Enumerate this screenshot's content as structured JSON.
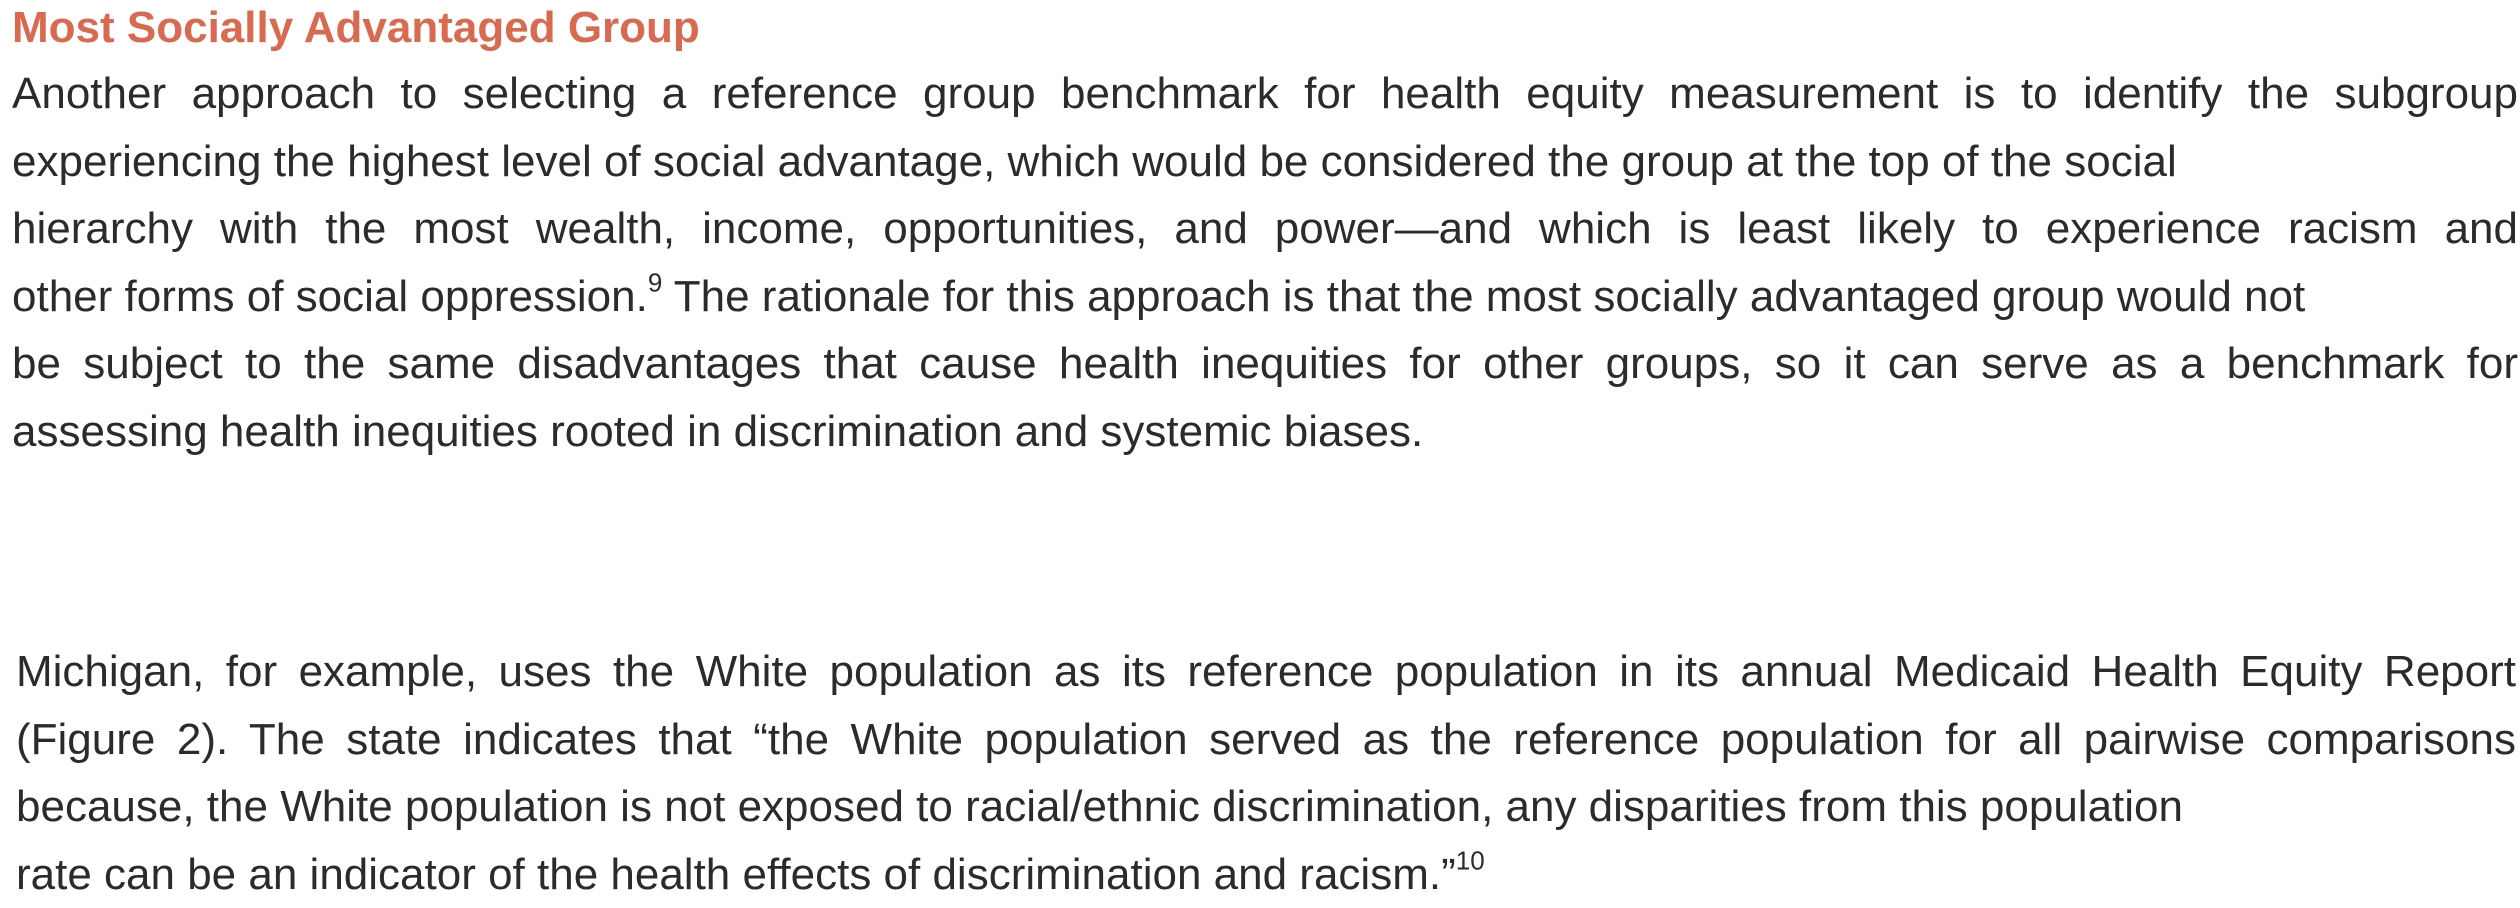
{
  "section": {
    "heading": "Most Socially Advantaged Group"
  },
  "paragraph1": {
    "lines": [
      "Another approach to selecting a reference group benchmark for health equity measurement is to identify the subgroup",
      "experiencing the highest level of social advantage, which would be considered the group at the top of the social",
      "hierarchy with the most wealth, income, opportunities, and power—and which is least likely to experience racism and",
      "other forms of social oppression.",
      " The rationale for this approach is that the most socially advantaged group would not",
      "be subject to the same disadvantages that cause health inequities for other groups, so it can serve as a benchmark for",
      "assessing health inequities rooted in discrimination and systemic biases."
    ],
    "footnote_ref": "9"
  },
  "paragraph2": {
    "lines": [
      "Michigan, for example, uses the White population as its reference population in its annual Medicaid Health Equity Report",
      "(Figure 2). The state indicates that “the White population served as the reference population for all pairwise comparisons",
      "because, the White population is not exposed to racial/ethnic discrimination, any disparities from this population",
      "rate can be an indicator of the health effects of discrimination and racism.”"
    ],
    "footnote_ref": "10"
  }
}
